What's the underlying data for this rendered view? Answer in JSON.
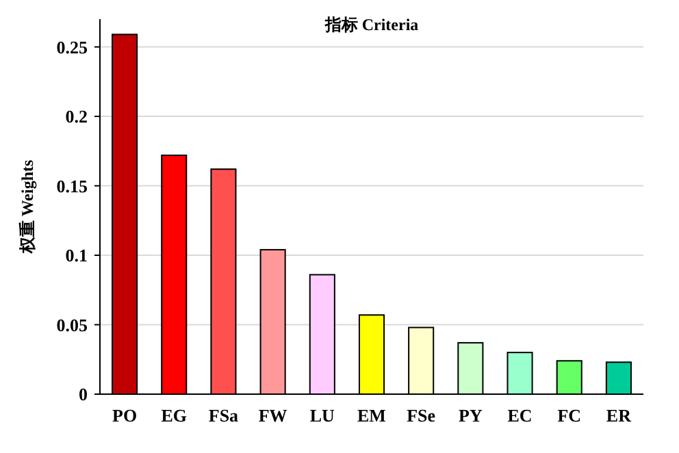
{
  "chart_data": {
    "type": "bar",
    "title": "指标 Criteria",
    "ylabel": "权重 Weights",
    "categories": [
      "PO",
      "EG",
      "FSa",
      "FW",
      "LU",
      "EM",
      "FSe",
      "PY",
      "EC",
      "FC",
      "ER"
    ],
    "values": [
      0.259,
      0.172,
      0.162,
      0.104,
      0.086,
      0.057,
      0.048,
      0.037,
      0.03,
      0.024,
      0.023
    ],
    "colors": [
      "#c00000",
      "#ff0000",
      "#ff5050",
      "#ff9999",
      "#ffccff",
      "#ffff00",
      "#ffffcc",
      "#ccffcc",
      "#99ffcc",
      "#66ff66",
      "#00cc99"
    ],
    "ylim": [
      0,
      0.27
    ],
    "yticks": [
      0,
      0.05,
      0.1,
      0.15,
      0.2,
      0.25
    ],
    "grid": "y"
  }
}
